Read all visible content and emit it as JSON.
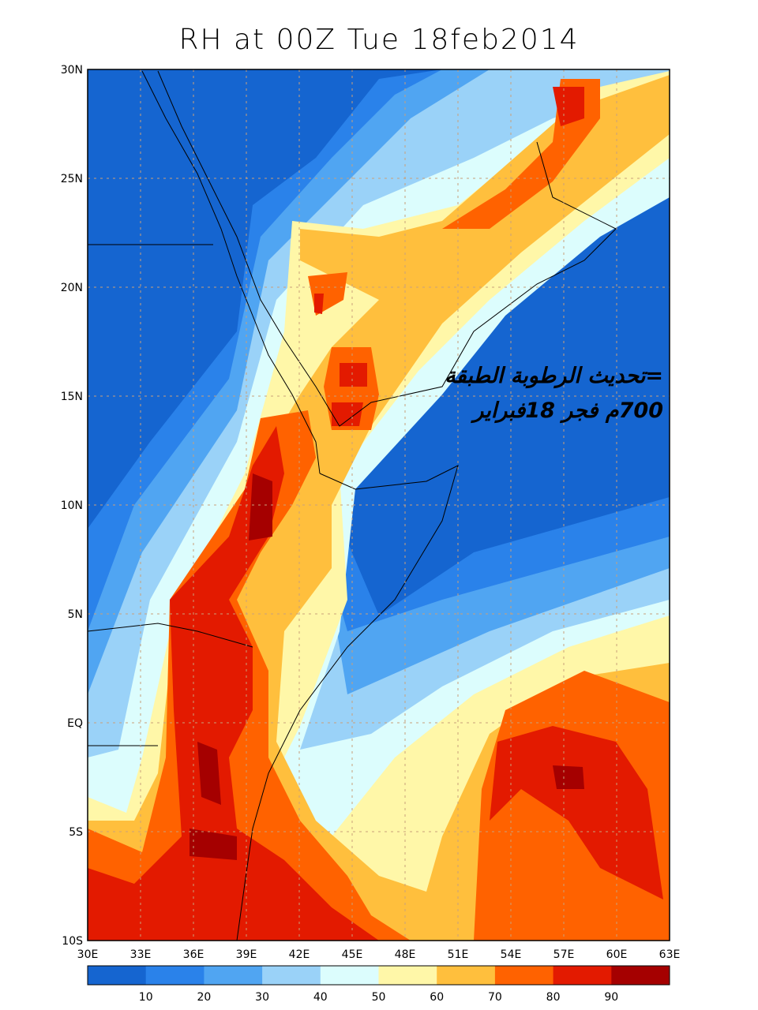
{
  "title": "RH at 00Z Tue 18feb2014",
  "x_ticks": [
    "30E",
    "33E",
    "36E",
    "39E",
    "42E",
    "45E",
    "48E",
    "51E",
    "54E",
    "57E",
    "60E",
    "63E"
  ],
  "y_ticks": [
    "30N",
    "25N",
    "20N",
    "15N",
    "10N",
    "5N",
    "EQ",
    "5S",
    "10S"
  ],
  "annotation": {
    "line1": "=تحديث الرطوبة الطبقة",
    "line2": "700م فجر 18فبراير"
  },
  "colorbar": {
    "labels": [
      "10",
      "20",
      "30",
      "40",
      "50",
      "60",
      "70",
      "80",
      "90"
    ],
    "colors": [
      "#1565d0",
      "#2a82ea",
      "#50a5f2",
      "#9ad2f8",
      "#dcfdfd",
      "#fff7a8",
      "#ffbf3d",
      "#ff6200",
      "#e31a00",
      "#a50000"
    ]
  },
  "map": {
    "variable": "RH",
    "lon_range": [
      30,
      63
    ],
    "lat_range": [
      -10,
      30
    ]
  }
}
